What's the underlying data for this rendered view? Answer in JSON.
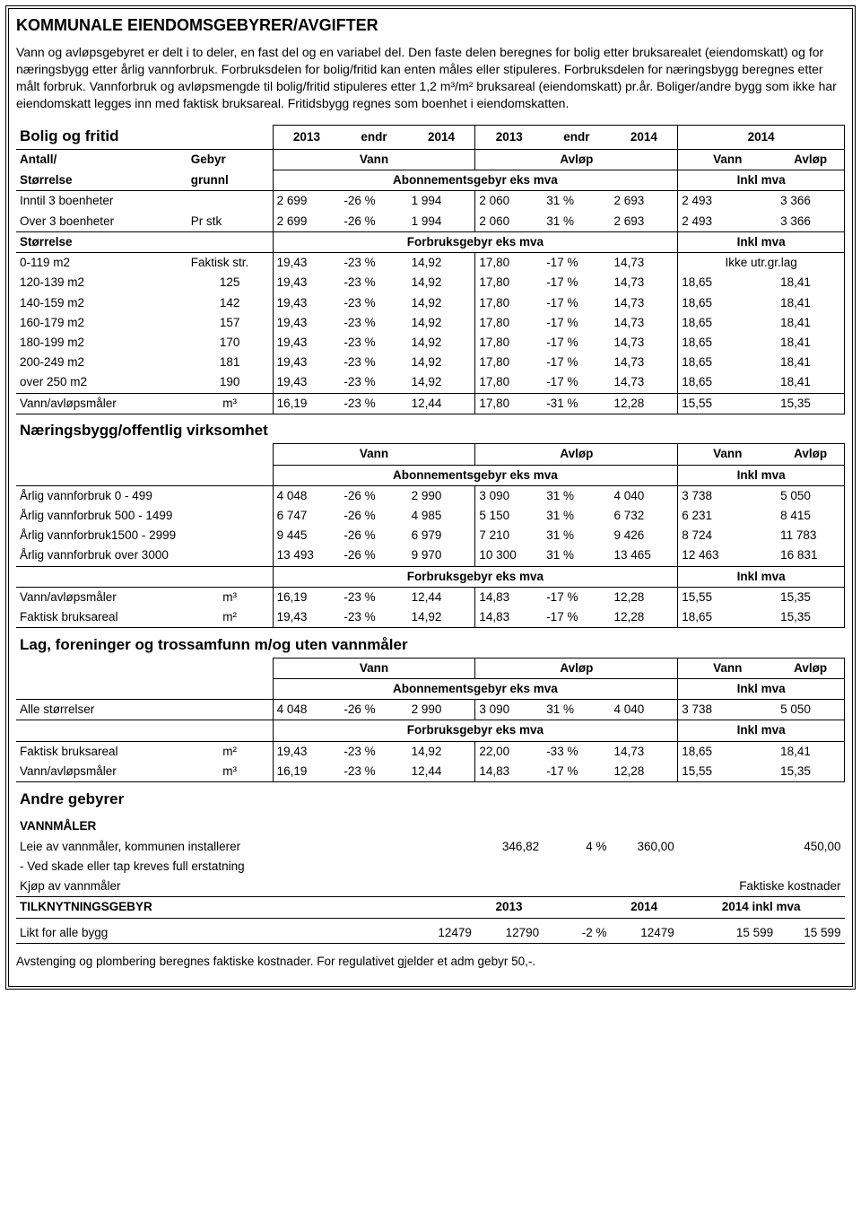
{
  "title": "KOMMUNALE EIENDOMSGEBYRER/AVGIFTER",
  "intro": "Vann og avløpsgebyret er delt i to deler, en fast del og en variabel del. Den faste delen beregnes for bolig etter bruksarealet (eiendomskatt) og for næringsbygg etter årlig vannforbruk. Forbruksdelen for bolig/fritid kan enten måles eller stipuleres. Forbruksdelen for næringsbygg beregnes etter målt forbruk. Vannforbruk og avløpsmengde til bolig/fritid stipuleres etter 1,2 m³/m² bruksareal (eiendomskatt) pr.år. Boliger/andre bygg som ikke har eiendomskatt legges inn med faktisk bruksareal. Fritidsbygg regnes som boenhet i eiendomskatten.",
  "hdr": {
    "y2013": "2013",
    "endr": "endr",
    "y2014": "2014",
    "vann": "Vann",
    "avlop": "Avløp",
    "antall": "Antall/",
    "storrelse": "Størrelse",
    "gebyr": "Gebyr",
    "grunnl": "grunnl",
    "abon_eks": "Abonnementsgebyr eks mva",
    "forbruk_eks": "Forbruksgebyr eks mva",
    "inkl": "Inkl mva"
  },
  "s1": {
    "title": "Bolig og fritid",
    "r1": {
      "lbl": "Inntil 3 boenheter",
      "g": "",
      "v1": "2 699",
      "v2": "-26 %",
      "v3": "1 994",
      "a1": "2 060",
      "a2": "31 %",
      "a3": "2 693",
      "iv": "2 493",
      "ia": "3 366"
    },
    "r2": {
      "lbl": "Over 3 boenheter",
      "g": "Pr stk",
      "v1": "2 699",
      "v2": "-26 %",
      "v3": "1 994",
      "a1": "2 060",
      "a2": "31 %",
      "a3": "2 693",
      "iv": "2 493",
      "ia": "3 366"
    },
    "sizehdr": "Størrelse",
    "f1": {
      "lbl": "0-119 m2",
      "g": "Faktisk str.",
      "v1": "19,43",
      "v2": "-23 %",
      "v3": "14,92",
      "a1": "17,80",
      "a2": "-17 %",
      "a3": "14,73",
      "note": "Ikke utr.gr.lag"
    },
    "f2": {
      "lbl": "120-139 m2",
      "g": "125",
      "v1": "19,43",
      "v2": "-23 %",
      "v3": "14,92",
      "a1": "17,80",
      "a2": "-17 %",
      "a3": "14,73",
      "iv": "18,65",
      "ia": "18,41"
    },
    "f3": {
      "lbl": "140-159 m2",
      "g": "142",
      "v1": "19,43",
      "v2": "-23 %",
      "v3": "14,92",
      "a1": "17,80",
      "a2": "-17 %",
      "a3": "14,73",
      "iv": "18,65",
      "ia": "18,41"
    },
    "f4": {
      "lbl": "160-179 m2",
      "g": "157",
      "v1": "19,43",
      "v2": "-23 %",
      "v3": "14,92",
      "a1": "17,80",
      "a2": "-17 %",
      "a3": "14,73",
      "iv": "18,65",
      "ia": "18,41"
    },
    "f5": {
      "lbl": "180-199 m2",
      "g": "170",
      "v1": "19,43",
      "v2": "-23 %",
      "v3": "14,92",
      "a1": "17,80",
      "a2": "-17 %",
      "a3": "14,73",
      "iv": "18,65",
      "ia": "18,41"
    },
    "f6": {
      "lbl": "200-249 m2",
      "g": "181",
      "v1": "19,43",
      "v2": "-23 %",
      "v3": "14,92",
      "a1": "17,80",
      "a2": "-17 %",
      "a3": "14,73",
      "iv": "18,65",
      "ia": "18,41"
    },
    "f7": {
      "lbl": "over 250 m2",
      "g": "190",
      "v1": "19,43",
      "v2": "-23 %",
      "v3": "14,92",
      "a1": "17,80",
      "a2": "-17 %",
      "a3": "14,73",
      "iv": "18,65",
      "ia": "18,41"
    },
    "f8": {
      "lbl": "Vann/avløpsmåler",
      "g": "m³",
      "v1": "16,19",
      "v2": "-23 %",
      "v3": "12,44",
      "a1": "17,80",
      "a2": "-31 %",
      "a3": "12,28",
      "iv": "15,55",
      "ia": "15,35"
    }
  },
  "s2": {
    "title": "Næringsbygg/offentlig virksomhet",
    "r1": {
      "lbl": "Årlig vannforbruk 0 - 499",
      "v1": "4 048",
      "v2": "-26 %",
      "v3": "2 990",
      "a1": "3 090",
      "a2": "31 %",
      "a3": "4 040",
      "iv": "3 738",
      "ia": "5 050"
    },
    "r2": {
      "lbl": "Årlig vannforbruk 500 - 1499",
      "v1": "6 747",
      "v2": "-26 %",
      "v3": "4 985",
      "a1": "5 150",
      "a2": "31 %",
      "a3": "6 732",
      "iv": "6 231",
      "ia": "8 415"
    },
    "r3": {
      "lbl": "Årlig vannforbruk1500 - 2999",
      "v1": "9 445",
      "v2": "-26 %",
      "v3": "6 979",
      "a1": "7 210",
      "a2": "31 %",
      "a3": "9 426",
      "iv": "8 724",
      "ia": "11 783"
    },
    "r4": {
      "lbl": "Årlig vannforbruk over 3000",
      "v1": "13 493",
      "v2": "-26 %",
      "v3": "9 970",
      "a1": "10 300",
      "a2": "31 %",
      "a3": "13 465",
      "iv": "12 463",
      "ia": "16 831"
    },
    "f1": {
      "lbl": "Vann/avløpsmåler",
      "g": "m³",
      "v1": "16,19",
      "v2": "-23 %",
      "v3": "12,44",
      "a1": "14,83",
      "a2": "-17 %",
      "a3": "12,28",
      "iv": "15,55",
      "ia": "15,35"
    },
    "f2": {
      "lbl": "Faktisk bruksareal",
      "g": "m²",
      "v1": "19,43",
      "v2": "-23 %",
      "v3": "14,92",
      "a1": "14,83",
      "a2": "-17 %",
      "a3": "12,28",
      "iv": "18,65",
      "ia": "15,35"
    }
  },
  "s3": {
    "title": "Lag, foreninger og trossamfunn m/og uten vannmåler",
    "r1": {
      "lbl": "Alle størrelser",
      "v1": "4 048",
      "v2": "-26 %",
      "v3": "2 990",
      "a1": "3 090",
      "a2": "31 %",
      "a3": "4 040",
      "iv": "3 738",
      "ia": "5 050"
    },
    "f1": {
      "lbl": "Faktisk bruksareal",
      "g": "m²",
      "v1": "19,43",
      "v2": "-23 %",
      "v3": "14,92",
      "a1": "22,00",
      "a2": "-33 %",
      "a3": "14,73",
      "iv": "18,65",
      "ia": "18,41"
    },
    "f2": {
      "lbl": "Vann/avløpsmåler",
      "g": "m³",
      "v1": "16,19",
      "v2": "-23 %",
      "v3": "12,44",
      "a1": "14,83",
      "a2": "-17 %",
      "a3": "12,28",
      "iv": "15,55",
      "ia": "15,35"
    }
  },
  "s4": {
    "title": "Andre gebyrer",
    "vannmaler": "VANNMÅLER",
    "leie": {
      "lbl": "Leie av vannmåler, kommunen installerer",
      "a1": "346,82",
      "a2": "4 %",
      "a3": "360,00",
      "ia": "450,00"
    },
    "skade": " - Ved skade eller tap kreves full erstatning",
    "kjop": {
      "lbl": "Kjøp av vannmåler",
      "note": "Faktiske kostnader"
    },
    "tilknyt": "TILKNYTNINGSGEBYR",
    "tilknyt_hdr": {
      "y2013": "2013",
      "y2014": "2014",
      "inkl": "2014 inkl mva"
    },
    "likt": {
      "lbl": "Likt for alle bygg",
      "v3": "12479",
      "a1": "12790",
      "a2": "-2 %",
      "a3": "12479",
      "iv": "15 599",
      "ia": "15 599"
    }
  },
  "footer": "Avstenging og plombering beregnes faktiske kostnader. For regulativet gjelder et adm gebyr 50,-."
}
